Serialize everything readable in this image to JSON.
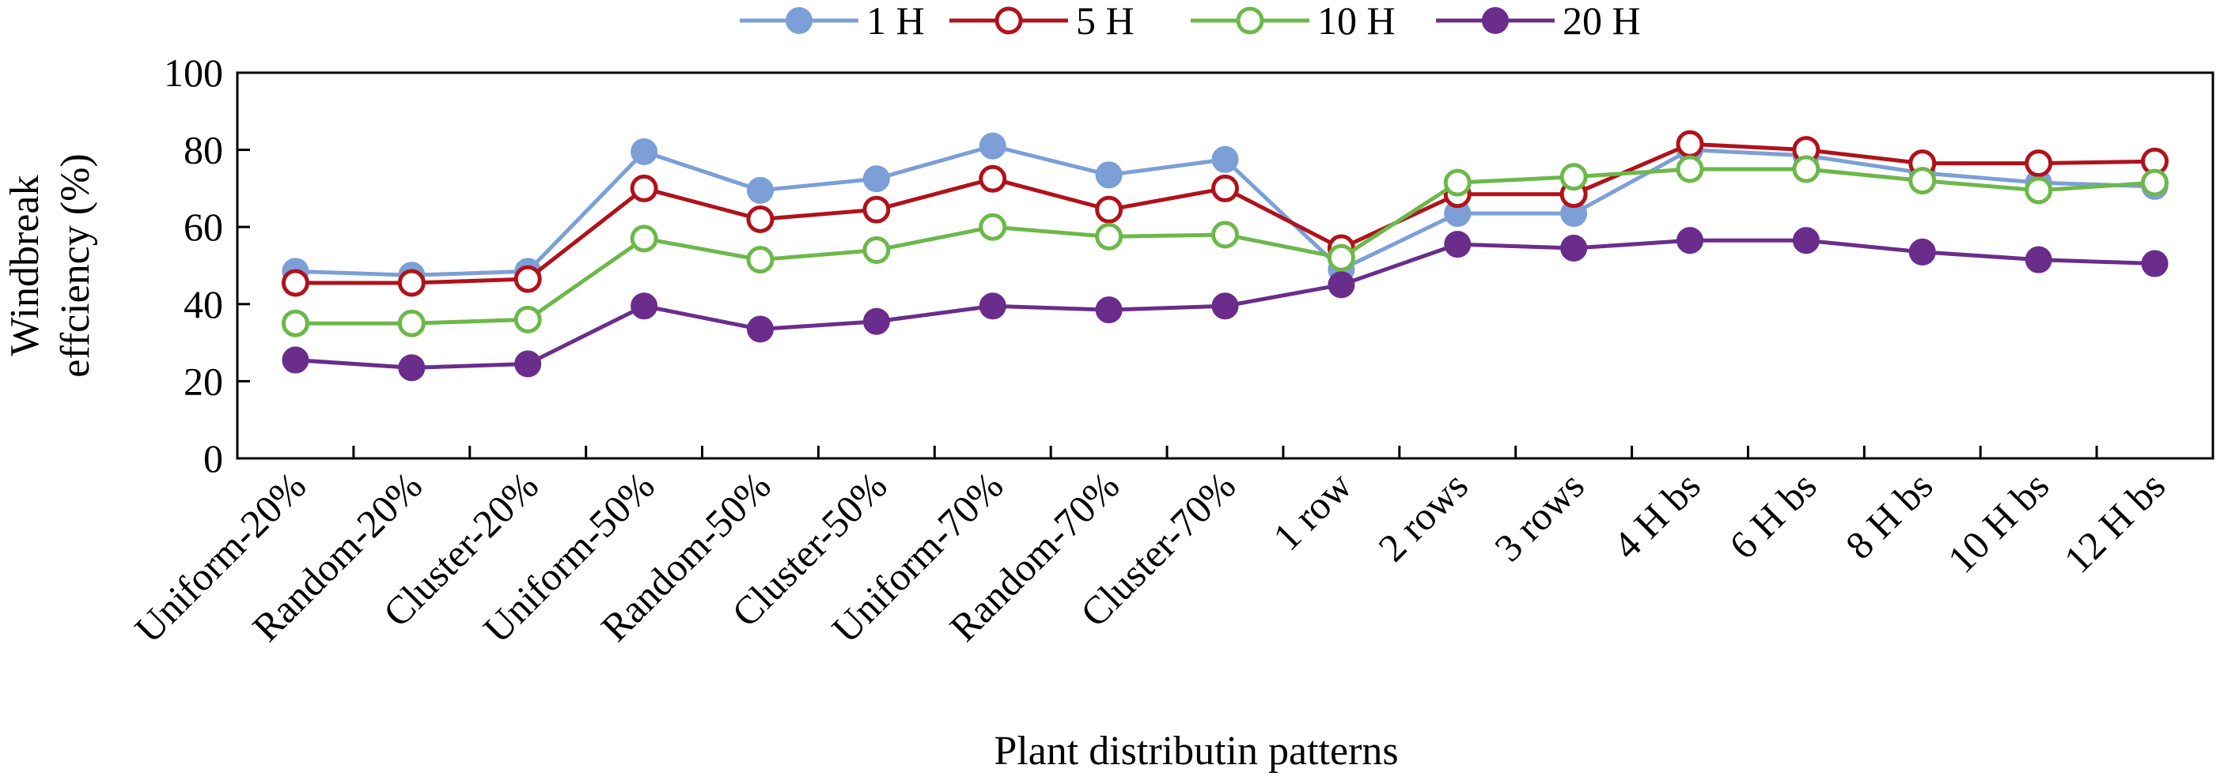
{
  "chart_data": {
    "type": "line",
    "title": "",
    "xlabel": "Plant distributin patterns",
    "ylabel": "Windbreak effciency (%)",
    "ylabel_lines": [
      "Windbreak",
      "effciency (%)"
    ],
    "ylim": [
      0,
      100
    ],
    "yticks": [
      0,
      20,
      40,
      60,
      80,
      100
    ],
    "grid": false,
    "legend_position": "top",
    "categories": [
      "Uniform-20%",
      "Random-20%",
      "Cluster-20%",
      "Uniform-50%",
      "Random-50%",
      "Cluster-50%",
      "Uniform-70%",
      "Random-70%",
      "Cluster-70%",
      "1 row",
      "2 rows",
      "3 rows",
      "4 H bs",
      "6 H bs",
      "8 H bs",
      "10 H bs",
      "12 H bs"
    ],
    "series": [
      {
        "name": "1 H",
        "color": "#7b9fd6",
        "marker": "filled-circle",
        "values": [
          48.5,
          47.5,
          48.5,
          79.5,
          69.5,
          72.5,
          81,
          73.5,
          77.5,
          49,
          63.5,
          63.5,
          80,
          78.5,
          74,
          71.5,
          70.5
        ]
      },
      {
        "name": "5 H",
        "color": "#b0121b",
        "marker": "open-circle",
        "values": [
          45.5,
          45.5,
          46.5,
          70,
          62,
          64.5,
          72.5,
          64.5,
          70,
          54.5,
          68.5,
          68.5,
          81.5,
          80,
          76.5,
          76.5,
          77
        ]
      },
      {
        "name": "10 H",
        "color": "#6cb84a",
        "marker": "open-circle",
        "values": [
          35,
          35,
          36,
          57,
          51.5,
          54,
          60,
          57.5,
          58,
          52,
          71.5,
          73,
          75,
          75,
          72,
          69.5,
          71.5
        ]
      },
      {
        "name": "20 H",
        "color": "#6a2d8c",
        "marker": "filled-circle",
        "values": [
          25.5,
          23.5,
          24.5,
          39.5,
          33.5,
          35.5,
          39.5,
          38.5,
          39.5,
          45,
          55.5,
          54.5,
          56.5,
          56.5,
          53.5,
          51.5,
          50.5
        ]
      }
    ]
  }
}
